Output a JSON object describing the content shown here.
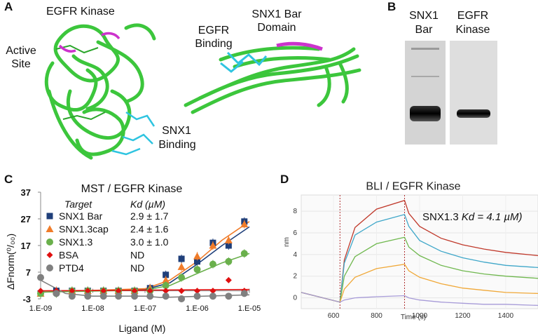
{
  "panel_letters": {
    "a": "A",
    "b": "B",
    "c": "C",
    "d": "D"
  },
  "panel_a": {
    "kinase_title": "EGFR Kinase",
    "active_site_line1": "Active",
    "active_site_line2": "Site",
    "snx1_binding_line1": "SNX1",
    "snx1_binding_line2": "Binding",
    "bar_title_line1": "SNX1 Bar",
    "bar_title_line2": "Domain",
    "egfr_binding_line1": "EGFR",
    "egfr_binding_line2": "Binding",
    "colors": {
      "protein": "#3cc63c",
      "active_site": "#cc33cc",
      "binding": "#2ec4e0"
    }
  },
  "panel_b": {
    "lane1_line1": "SNX1",
    "lane1_line2": "Bar",
    "lane2_line1": "EGFR",
    "lane2_line2": "Kinase"
  },
  "panel_c": {
    "title": "MST / EGFR Kinase",
    "target_header": "Target",
    "kd_header": "Kd (µM)",
    "legend": [
      {
        "name": "SNX1 Bar",
        "kd": "2.9 ± 1.7",
        "color": "#1f3f7a",
        "marker": "square",
        "icon": "blue-square-icon"
      },
      {
        "name": "SNX1.3cap",
        "kd": "2.4 ± 1.6",
        "color": "#f07c2a",
        "marker": "triangle",
        "icon": "orange-triangle-icon"
      },
      {
        "name": "SNX1.3",
        "kd": "3.0 ± 1.0",
        "color": "#6ab04c",
        "marker": "circle",
        "icon": "green-circle-icon"
      },
      {
        "name": "BSA",
        "kd": "ND",
        "color": "#e01010",
        "marker": "diamond",
        "icon": "red-diamond-icon"
      },
      {
        "name": "PTD4",
        "kd": "ND",
        "color": "#808080",
        "marker": "circle",
        "icon": "gray-circle-icon"
      }
    ]
  },
  "panel_d": {
    "title": "BLI / EGFR Kinase",
    "annotation_prefix": "SNX1.3 ",
    "annotation_kd": "Kd = 4.1 µM)"
  },
  "chart_data": [
    {
      "type": "scatter",
      "title": "MST / EGFR Kinase",
      "xlabel": "Ligand (M)",
      "ylabel": "ΔFnorm(⁰/₀₀)",
      "xscale": "log",
      "xlim": [
        1e-09,
        1e-05
      ],
      "ylim": [
        -3,
        37
      ],
      "x_ticks": [
        "1.E-09",
        "1.E-08",
        "1.E-07",
        "1.E-06",
        "1.E-05"
      ],
      "y_ticks": [
        "-3",
        "7",
        "17",
        "27",
        "37"
      ],
      "series": [
        {
          "name": "SNX1 Bar",
          "color": "#1f3f7a",
          "marker": "square",
          "x": [
            1e-09,
            2e-09,
            4e-09,
            8e-09,
            1.6e-08,
            3.1e-08,
            6.3e-08,
            1.25e-07,
            2.5e-07,
            5e-07,
            1e-06,
            2e-06,
            4e-06,
            8e-06
          ],
          "y": [
            -1,
            0,
            0,
            0,
            0,
            0,
            0,
            1,
            6,
            12,
            11,
            18,
            17,
            26
          ],
          "fit": [
            [
              1e-09,
              -0.5
            ],
            [
              1e-07,
              0.5
            ],
            [
              3e-07,
              3
            ],
            [
              1e-06,
              10
            ],
            [
              3e-06,
              17
            ],
            [
              1e-05,
              24
            ]
          ]
        },
        {
          "name": "SNX1.3cap",
          "color": "#f07c2a",
          "marker": "triangle",
          "x": [
            1e-09,
            2e-09,
            4e-09,
            8e-09,
            1.6e-08,
            3.1e-08,
            6.3e-08,
            1.25e-07,
            2.5e-07,
            5e-07,
            1e-06,
            2e-06,
            4e-06,
            8e-06
          ],
          "y": [
            -1,
            0,
            0,
            0,
            0,
            0,
            0,
            1,
            4,
            9,
            13,
            17,
            19,
            25
          ],
          "fit": [
            [
              1e-09,
              -0.5
            ],
            [
              1e-07,
              0.8
            ],
            [
              3e-07,
              4
            ],
            [
              1e-06,
              11
            ],
            [
              3e-06,
              19
            ],
            [
              1e-05,
              26
            ]
          ]
        },
        {
          "name": "SNX1.3",
          "color": "#6ab04c",
          "marker": "circle",
          "x": [
            1e-09,
            2e-09,
            4e-09,
            8e-09,
            1.6e-08,
            3.1e-08,
            6.3e-08,
            1.25e-07,
            2.5e-07,
            5e-07,
            1e-06,
            2e-06,
            4e-06,
            8e-06
          ],
          "y": [
            -1,
            -1,
            0,
            0,
            0,
            0,
            0,
            0,
            2,
            5,
            8,
            10,
            11,
            14
          ],
          "fit": [
            [
              1e-09,
              -0.5
            ],
            [
              1e-07,
              0.3
            ],
            [
              3e-07,
              2
            ],
            [
              1e-06,
              6.5
            ],
            [
              3e-06,
              10.5
            ],
            [
              1e-05,
              14
            ]
          ]
        },
        {
          "name": "BSA",
          "color": "#e01010",
          "marker": "diamond",
          "x": [
            1e-09,
            2e-09,
            4e-09,
            8e-09,
            1.6e-08,
            3.1e-08,
            6.3e-08,
            1.25e-07,
            2.5e-07,
            5e-07,
            1e-06,
            2e-06,
            4e-06,
            8e-06
          ],
          "y": [
            0,
            0,
            0,
            0,
            0,
            0,
            0,
            0,
            0,
            0,
            0,
            0,
            4,
            0
          ],
          "fit": [
            [
              1e-09,
              0
            ],
            [
              1e-05,
              0.5
            ]
          ]
        },
        {
          "name": "PTD4",
          "color": "#808080",
          "marker": "circle",
          "x": [
            1e-09,
            2e-09,
            4e-09,
            8e-09,
            1.6e-08,
            3.1e-08,
            6.3e-08,
            1.25e-07,
            2.5e-07,
            5e-07,
            1e-06,
            2e-06,
            4e-06,
            8e-06
          ],
          "y": [
            5,
            -1,
            -2,
            -2,
            -2,
            -2,
            -2,
            -2,
            -2,
            -3,
            -2,
            -2,
            -2,
            -1
          ],
          "fit": [
            [
              1e-09,
              4
            ],
            [
              3e-09,
              -1
            ],
            [
              1e-08,
              -2
            ],
            [
              1e-07,
              -2
            ],
            [
              2e-07,
              -2.5
            ],
            [
              1e-05,
              -1.5
            ]
          ]
        }
      ]
    },
    {
      "type": "line",
      "title": "BLI / EGFR Kinase",
      "xlabel": "Time (s)",
      "ylabel": "nm",
      "xlim": [
        450,
        1550
      ],
      "ylim": [
        -1,
        9.5
      ],
      "x_ticks": [
        "600",
        "800",
        "1000",
        "1200",
        "1400"
      ],
      "y_ticks": [
        "0",
        "2",
        "4",
        "6",
        "8"
      ],
      "events": [
        630,
        930
      ],
      "series": [
        {
          "color": "#c0392b",
          "x": [
            450,
            630,
            650,
            700,
            800,
            930,
            950,
            1000,
            1100,
            1200,
            1300,
            1400,
            1550
          ],
          "y": [
            0.5,
            -0.4,
            3.5,
            6.5,
            8.2,
            9.0,
            7.8,
            6.6,
            5.5,
            4.9,
            4.5,
            4.2,
            3.9
          ]
        },
        {
          "color": "#3fa7c9",
          "x": [
            450,
            630,
            650,
            700,
            800,
            930,
            950,
            1000,
            1100,
            1200,
            1300,
            1400,
            1550
          ],
          "y": [
            0.5,
            -0.4,
            3.2,
            5.8,
            7.0,
            7.7,
            6.6,
            5.3,
            4.3,
            3.7,
            3.3,
            3.0,
            2.8
          ]
        },
        {
          "color": "#70b84f",
          "x": [
            450,
            630,
            650,
            700,
            800,
            930,
            950,
            1000,
            1100,
            1200,
            1300,
            1400,
            1550
          ],
          "y": [
            0.5,
            -0.4,
            2.0,
            3.8,
            5.0,
            5.6,
            4.7,
            3.9,
            3.0,
            2.5,
            2.2,
            2.0,
            1.8
          ]
        },
        {
          "color": "#f0a838",
          "x": [
            450,
            630,
            650,
            700,
            800,
            930,
            950,
            1000,
            1100,
            1200,
            1300,
            1400,
            1550
          ],
          "y": [
            0.5,
            -0.4,
            0.8,
            1.9,
            2.7,
            3.1,
            2.5,
            1.9,
            1.3,
            0.9,
            0.7,
            0.5,
            0.4
          ]
        },
        {
          "color": "#a79bd8",
          "x": [
            450,
            630,
            650,
            700,
            800,
            930,
            950,
            1000,
            1100,
            1200,
            1300,
            1400,
            1550
          ],
          "y": [
            0.5,
            -0.4,
            -0.2,
            0.0,
            0.1,
            0.2,
            0.0,
            -0.2,
            -0.4,
            -0.5,
            -0.6,
            -0.6,
            -0.7
          ]
        }
      ]
    }
  ]
}
